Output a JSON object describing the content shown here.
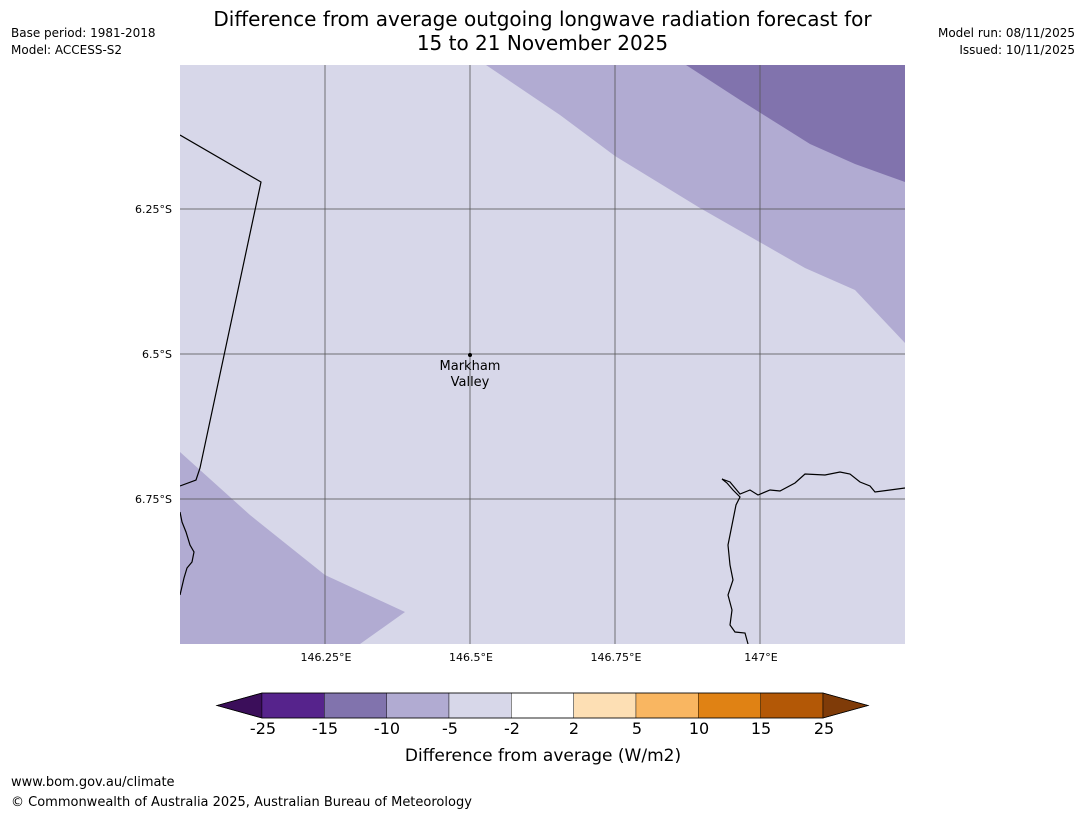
{
  "header": {
    "title_line1": "Difference from average outgoing longwave radiation forecast for",
    "title_line2": "15 to 21 November 2025",
    "base_period": "Base period: 1981-2018",
    "model": "Model: ACCESS-S2",
    "model_run": "Model run: 08/11/2025",
    "issued": "Issued: 10/11/2025"
  },
  "map": {
    "longitude_ticks": [
      "146.25°E",
      "146.5°E",
      "146.75°E",
      "147°E"
    ],
    "latitude_ticks": [
      "6.25°S",
      "6.5°S",
      "6.75°S"
    ],
    "place": {
      "name_line1": "Markham",
      "name_line2": "Valley"
    },
    "colors": {
      "bin_neg10_neg5": "#b1abd2",
      "bin_neg5_neg2": "#d7d7e9",
      "bin_neg15_neg10": "#8173ad",
      "grid": "#555555",
      "border": "#000000"
    }
  },
  "colorbar": {
    "ticks": [
      "-25",
      "-15",
      "-10",
      "-5",
      "-2",
      "2",
      "5",
      "10",
      "15",
      "25"
    ],
    "title": "Difference from average (W/m2)",
    "extend_low_color": "#3b0e5a",
    "extend_high_color": "#7f3b08",
    "bins": [
      {
        "color": "#56238c"
      },
      {
        "color": "#8173ad"
      },
      {
        "color": "#b1abd2"
      },
      {
        "color": "#d7d7e9"
      },
      {
        "color": "#ffffff"
      },
      {
        "color": "#fddfb4"
      },
      {
        "color": "#f9b661"
      },
      {
        "color": "#e08214"
      },
      {
        "color": "#b35806"
      }
    ]
  },
  "footer": {
    "website": "www.bom.gov.au/climate",
    "copyright": "© Commonwealth of Australia 2025, Australian Bureau of Meteorology"
  }
}
